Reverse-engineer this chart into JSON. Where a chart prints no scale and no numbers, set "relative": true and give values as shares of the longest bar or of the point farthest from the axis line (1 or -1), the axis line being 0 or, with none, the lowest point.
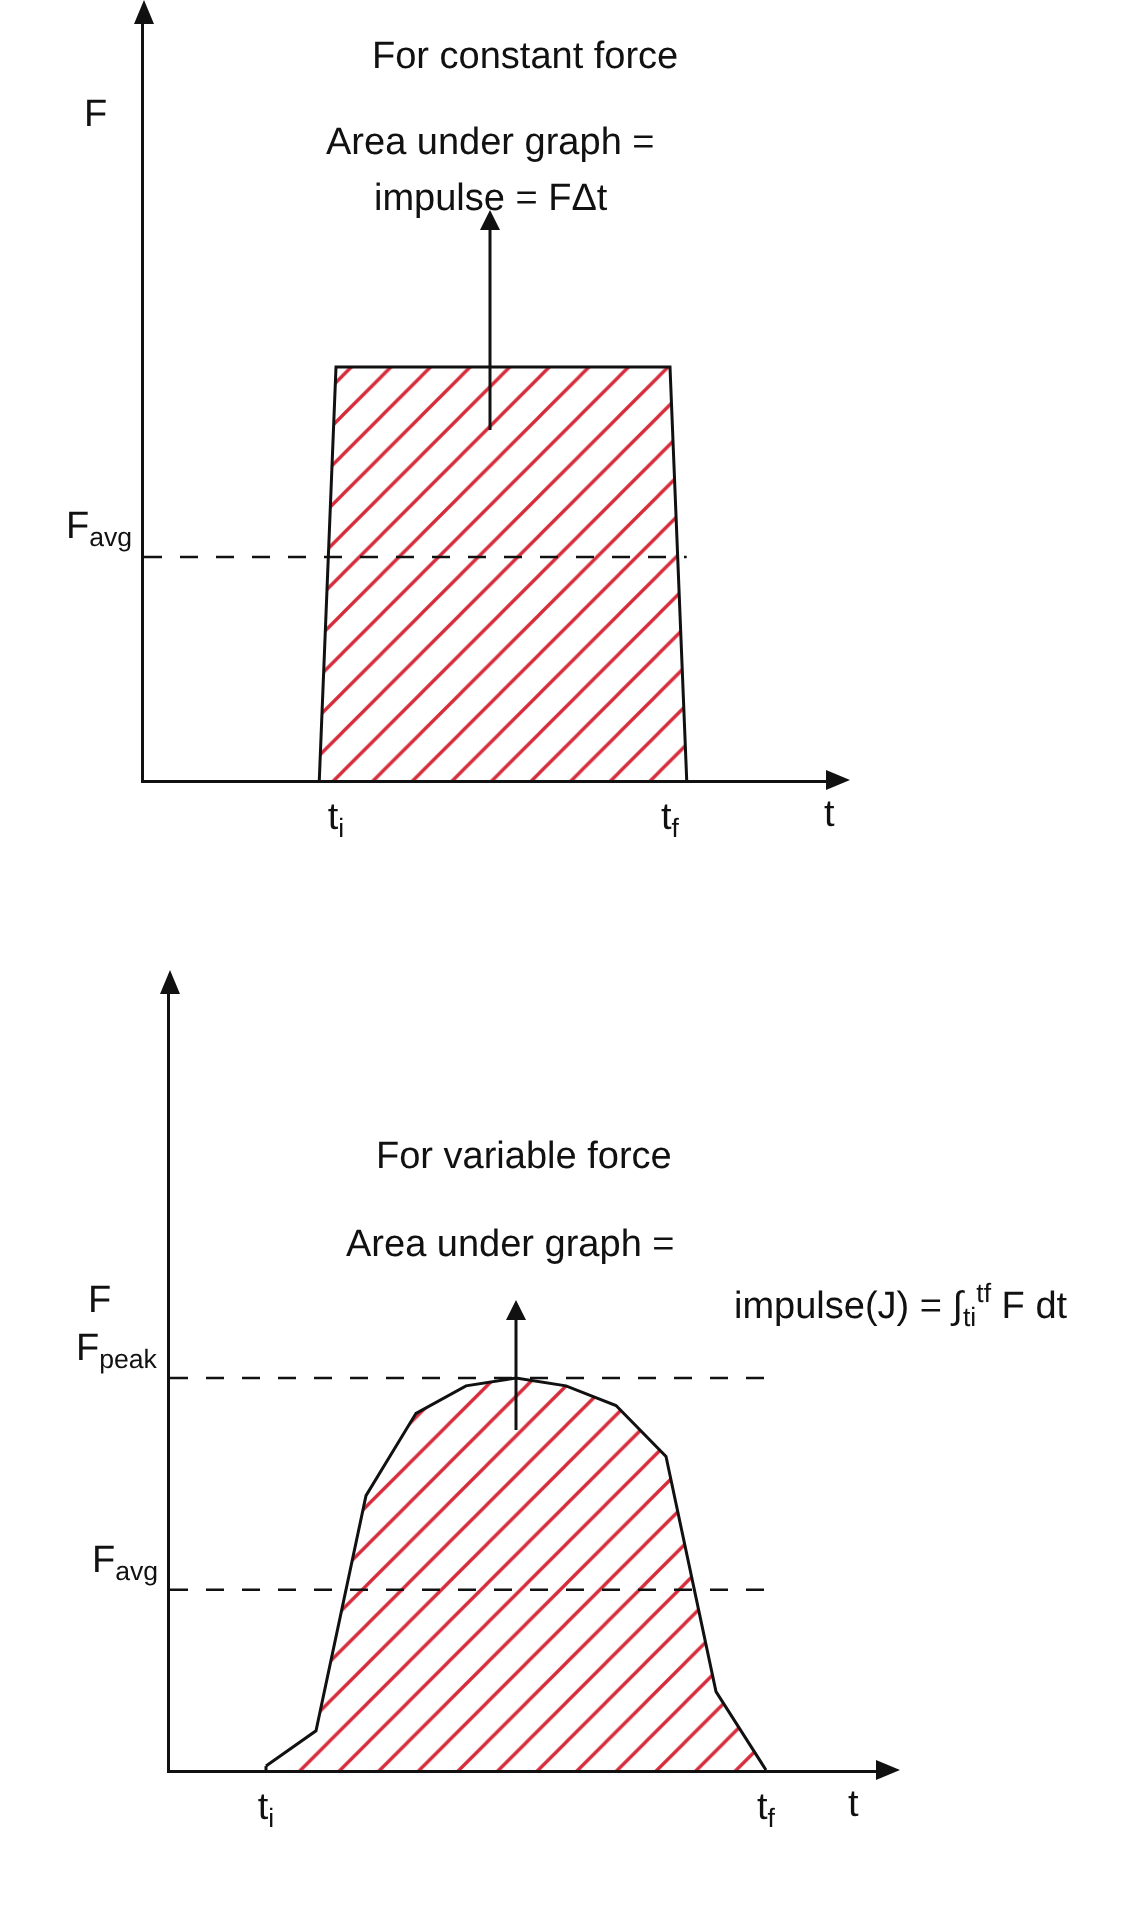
{
  "chart_data": [
    {
      "type": "area",
      "title": "For constant force",
      "xlabel": "t",
      "ylabel": "F",
      "relative": true,
      "annotations": [
        "Area under graph =",
        "impulse = FΔt"
      ],
      "categories": [
        null,
        null,
        null,
        null,
        null,
        null,
        null,
        null,
        null,
        null,
        null,
        "t$_{i}$",
        null,
        null,
        null,
        null,
        null,
        null,
        null,
        null,
        null,
        null,
        null,
        null,
        null,
        null,
        null,
        null,
        null,
        null,
        null,
        "t$_{f}$",
        null,
        null,
        null,
        null,
        null,
        null,
        null,
        null,
        null
      ],
      "series": [
        {
          "color": "#d62b3a",
          "values": [
            null,
            null,
            null,
            null,
            null,
            null,
            null,
            null,
            null,
            null,
            0,
            1,
            1,
            1,
            1,
            1,
            1,
            1,
            1,
            1,
            1,
            1,
            1,
            1,
            1,
            1,
            1,
            1,
            1,
            1,
            1,
            1,
            0,
            null,
            null,
            null,
            null,
            null,
            null,
            null,
            null
          ]
        }
      ],
      "ref_lines": [
        {
          "axis": "y",
          "value": 0.54,
          "label": "F$_{avg}$",
          "line_style": "dashed"
        }
      ],
      "grid": false
    },
    {
      "type": "area",
      "title": "For variable force",
      "xlabel": "t",
      "ylabel": "F",
      "relative": true,
      "annotations": [
        "Area under graph =",
        "impulse(J) = ∫$_{ti}$$^{tf}$ F dt"
      ],
      "categories": [
        null,
        "t$_{i}$",
        null,
        null,
        null,
        null,
        null,
        null,
        null,
        null,
        null,
        "t$_{f}$",
        null,
        null
      ],
      "series": [
        {
          "color": "#d62b3a",
          "values": [
            null,
            0.01,
            0.1,
            0.7,
            0.91,
            0.98,
            1,
            0.98,
            0.93,
            0.8,
            0.2,
            0,
            null,
            null
          ]
        }
      ],
      "ref_lines": [
        {
          "axis": "y",
          "value": 1,
          "label": "F$_{peak}$",
          "line_style": "dashed"
        },
        {
          "axis": "y",
          "value": 0.46,
          "label": "F$_{avg}$",
          "line_style": "dashed"
        }
      ],
      "grid": false
    }
  ]
}
